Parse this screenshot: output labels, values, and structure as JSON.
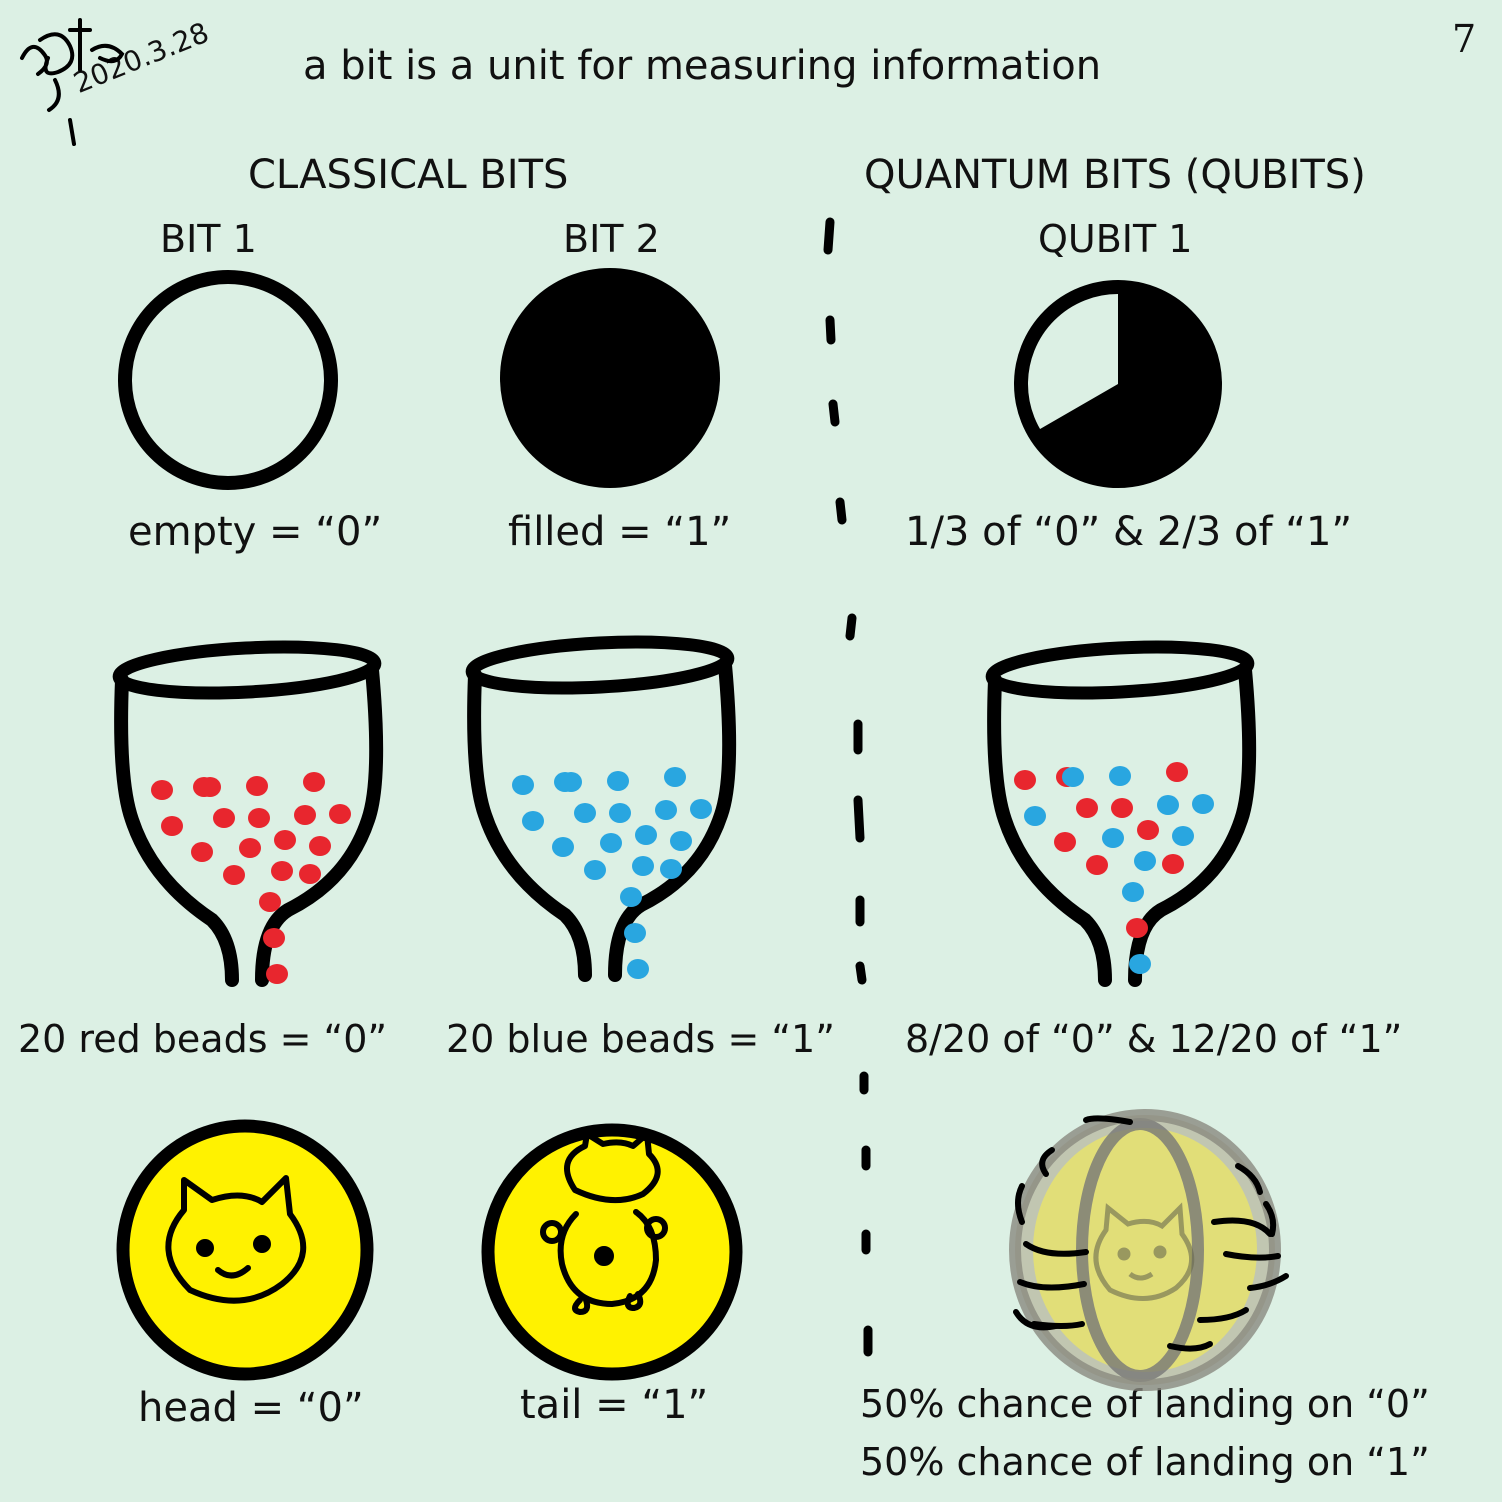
{
  "title": "a bit is a unit for measuring information",
  "page_number": "7",
  "signature_date": "2020.3.28",
  "sections": {
    "classical": "CLASSICAL BITS",
    "quantum": "QUANTUM BITS (QUBITS)"
  },
  "columns": {
    "bit1": "BIT 1",
    "bit2": "BIT 2",
    "qubit1": "QUBIT 1"
  },
  "captions": {
    "circle_bit1": "empty = “0”",
    "circle_bit2": "filled = “1”",
    "circle_qubit": "1/3 of “0” & 2/3 of “1”",
    "beads_bit1": "20 red beads = “0”",
    "beads_bit2": "20 blue beads = “1”",
    "beads_qubit": "8/20 of “0” & 12/20 of “1”",
    "coin_bit1": "head = “0”",
    "coin_bit2": "tail = “1”",
    "coin_qubit_line1": "50% chance of landing on “0”",
    "coin_qubit_line2": "50% chance of landing on “1”"
  },
  "colors": {
    "background": "#dcf0e4",
    "red_bead": "#e8262e",
    "blue_bead": "#29a6e0",
    "coin": "#fff200",
    "ink": "#000000"
  },
  "qubit_fill_fraction": 0.6667,
  "bead_counts": {
    "bit1_red": 20,
    "bit2_blue": 20,
    "qubit_red": 8,
    "qubit_blue": 12
  }
}
